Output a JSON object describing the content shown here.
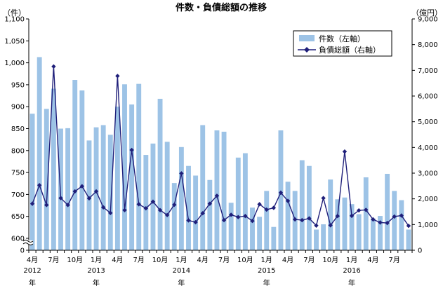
{
  "chart_data": {
    "type": "bar+line",
    "title": "件数・負債総額の推移",
    "left_axis": {
      "unit_label": "（件）",
      "ylim": [
        600,
        1100
      ],
      "ticks": [
        {
          "value": 600,
          "label": "600"
        },
        {
          "value": 650,
          "label": "650"
        },
        {
          "value": 700,
          "label": "700"
        },
        {
          "value": 750,
          "label": "750"
        },
        {
          "value": 800,
          "label": "800"
        },
        {
          "value": 850,
          "label": "850"
        },
        {
          "value": 900,
          "label": "900"
        },
        {
          "value": 950,
          "label": "950"
        },
        {
          "value": 1000,
          "label": "1,000"
        },
        {
          "value": 1050,
          "label": "1,050"
        },
        {
          "value": 1100,
          "label": "1,100"
        }
      ],
      "zero_label": "0",
      "axis_break": true
    },
    "right_axis": {
      "unit_label": "（億円）",
      "ylim": [
        0,
        9000
      ],
      "ticks": [
        {
          "value": 0,
          "label": "0"
        },
        {
          "value": 1000,
          "label": "1,000"
        },
        {
          "value": 2000,
          "label": "2,000"
        },
        {
          "value": 3000,
          "label": "3,000"
        },
        {
          "value": 4000,
          "label": "4,000"
        },
        {
          "value": 5000,
          "label": "5,000"
        },
        {
          "value": 6000,
          "label": "6,000"
        },
        {
          "value": 7000,
          "label": "7,000"
        },
        {
          "value": 8000,
          "label": "8,000"
        },
        {
          "value": 9000,
          "label": "9,000"
        }
      ]
    },
    "x_axis": {
      "month_labels": [
        {
          "index": 0,
          "label": "4月"
        },
        {
          "index": 3,
          "label": "7月"
        },
        {
          "index": 6,
          "label": "10月"
        },
        {
          "index": 9,
          "label": "1月"
        },
        {
          "index": 12,
          "label": "4月"
        },
        {
          "index": 15,
          "label": "7月"
        },
        {
          "index": 18,
          "label": "10月"
        },
        {
          "index": 21,
          "label": "1月"
        },
        {
          "index": 24,
          "label": "4月"
        },
        {
          "index": 27,
          "label": "7月"
        },
        {
          "index": 30,
          "label": "10月"
        },
        {
          "index": 33,
          "label": "1月"
        },
        {
          "index": 36,
          "label": "4月"
        },
        {
          "index": 39,
          "label": "7月"
        },
        {
          "index": 42,
          "label": "10月"
        },
        {
          "index": 45,
          "label": "1月"
        },
        {
          "index": 48,
          "label": "4月"
        },
        {
          "index": 51,
          "label": "7月"
        }
      ],
      "year_labels": [
        {
          "index": 0,
          "year": "2012",
          "suffix": "年"
        },
        {
          "index": 9,
          "year": "2013",
          "suffix": "年"
        },
        {
          "index": 21,
          "year": "2014",
          "suffix": "年"
        },
        {
          "index": 33,
          "year": "2015",
          "suffix": "年"
        },
        {
          "index": 45,
          "year": "2016",
          "suffix": "年"
        }
      ]
    },
    "series": [
      {
        "name": "件数（左軸）",
        "type": "bar",
        "axis": "left",
        "color": "#9dc3e6",
        "values": [
          884,
          1013,
          895,
          941,
          850,
          851,
          961,
          937,
          823,
          853,
          858,
          836,
          900,
          951,
          905,
          952,
          790,
          816,
          918,
          820,
          726,
          808,
          765,
          743,
          858,
          733,
          846,
          843,
          681,
          784,
          794,
          670,
          649,
          708,
          626,
          846,
          729,
          708,
          778,
          765,
          620,
          632,
          734,
          689,
          693,
          678,
          655,
          739,
          645,
          651,
          747,
          708,
          687,
          620
        ]
      },
      {
        "name": "負債総額（右軸）",
        "type": "line",
        "axis": "right",
        "color": "#1f1f7a",
        "values": [
          1810,
          2530,
          1760,
          7150,
          2030,
          1760,
          2290,
          2490,
          2020,
          2290,
          1670,
          1450,
          6780,
          1560,
          3900,
          1790,
          1630,
          1890,
          1560,
          1370,
          1770,
          2990,
          1160,
          1090,
          1440,
          1810,
          2120,
          1170,
          1380,
          1290,
          1330,
          1140,
          1790,
          1580,
          1650,
          2240,
          1920,
          1200,
          1170,
          1240,
          960,
          2030,
          970,
          1330,
          3840,
          1340,
          1550,
          1570,
          1200,
          1080,
          1060,
          1310,
          1350,
          950
        ]
      }
    ]
  }
}
